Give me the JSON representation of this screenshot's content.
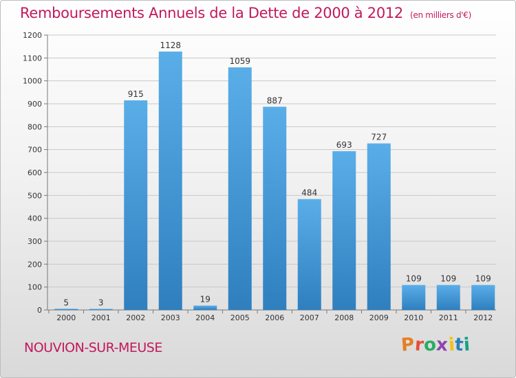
{
  "header": {
    "title": "Remboursements Annuels de la Dette de 2000 à 2012",
    "subtitle": "(en milliers d'€)"
  },
  "footer": {
    "commune": "NOUVION-SUR-MEUSE",
    "logo_text": "Proxiti"
  },
  "colors": {
    "title": "#c2185b",
    "bar_top": "#5aaee8",
    "bar_bottom": "#2f7fbf"
  },
  "chart_data": {
    "type": "bar",
    "title": "Remboursements Annuels de la Dette de 2000 à 2012",
    "subtitle": "(en milliers d'€)",
    "xlabel": "",
    "ylabel": "",
    "categories": [
      "2000",
      "2001",
      "2002",
      "2003",
      "2004",
      "2005",
      "2006",
      "2007",
      "2008",
      "2009",
      "2010",
      "2011",
      "2012"
    ],
    "values": [
      5,
      3,
      915,
      1128,
      19,
      1059,
      887,
      484,
      693,
      727,
      109,
      109,
      109
    ],
    "data_labels": [
      "5",
      "3",
      "915",
      "1128",
      "19",
      "1059",
      "887",
      "484",
      "693",
      "727",
      "109",
      "109",
      "109"
    ],
    "ylim": [
      0,
      1200
    ],
    "yticks": [
      0,
      100,
      200,
      300,
      400,
      500,
      600,
      700,
      800,
      900,
      1000,
      1100,
      1200
    ],
    "grid": true,
    "legend": "none"
  }
}
